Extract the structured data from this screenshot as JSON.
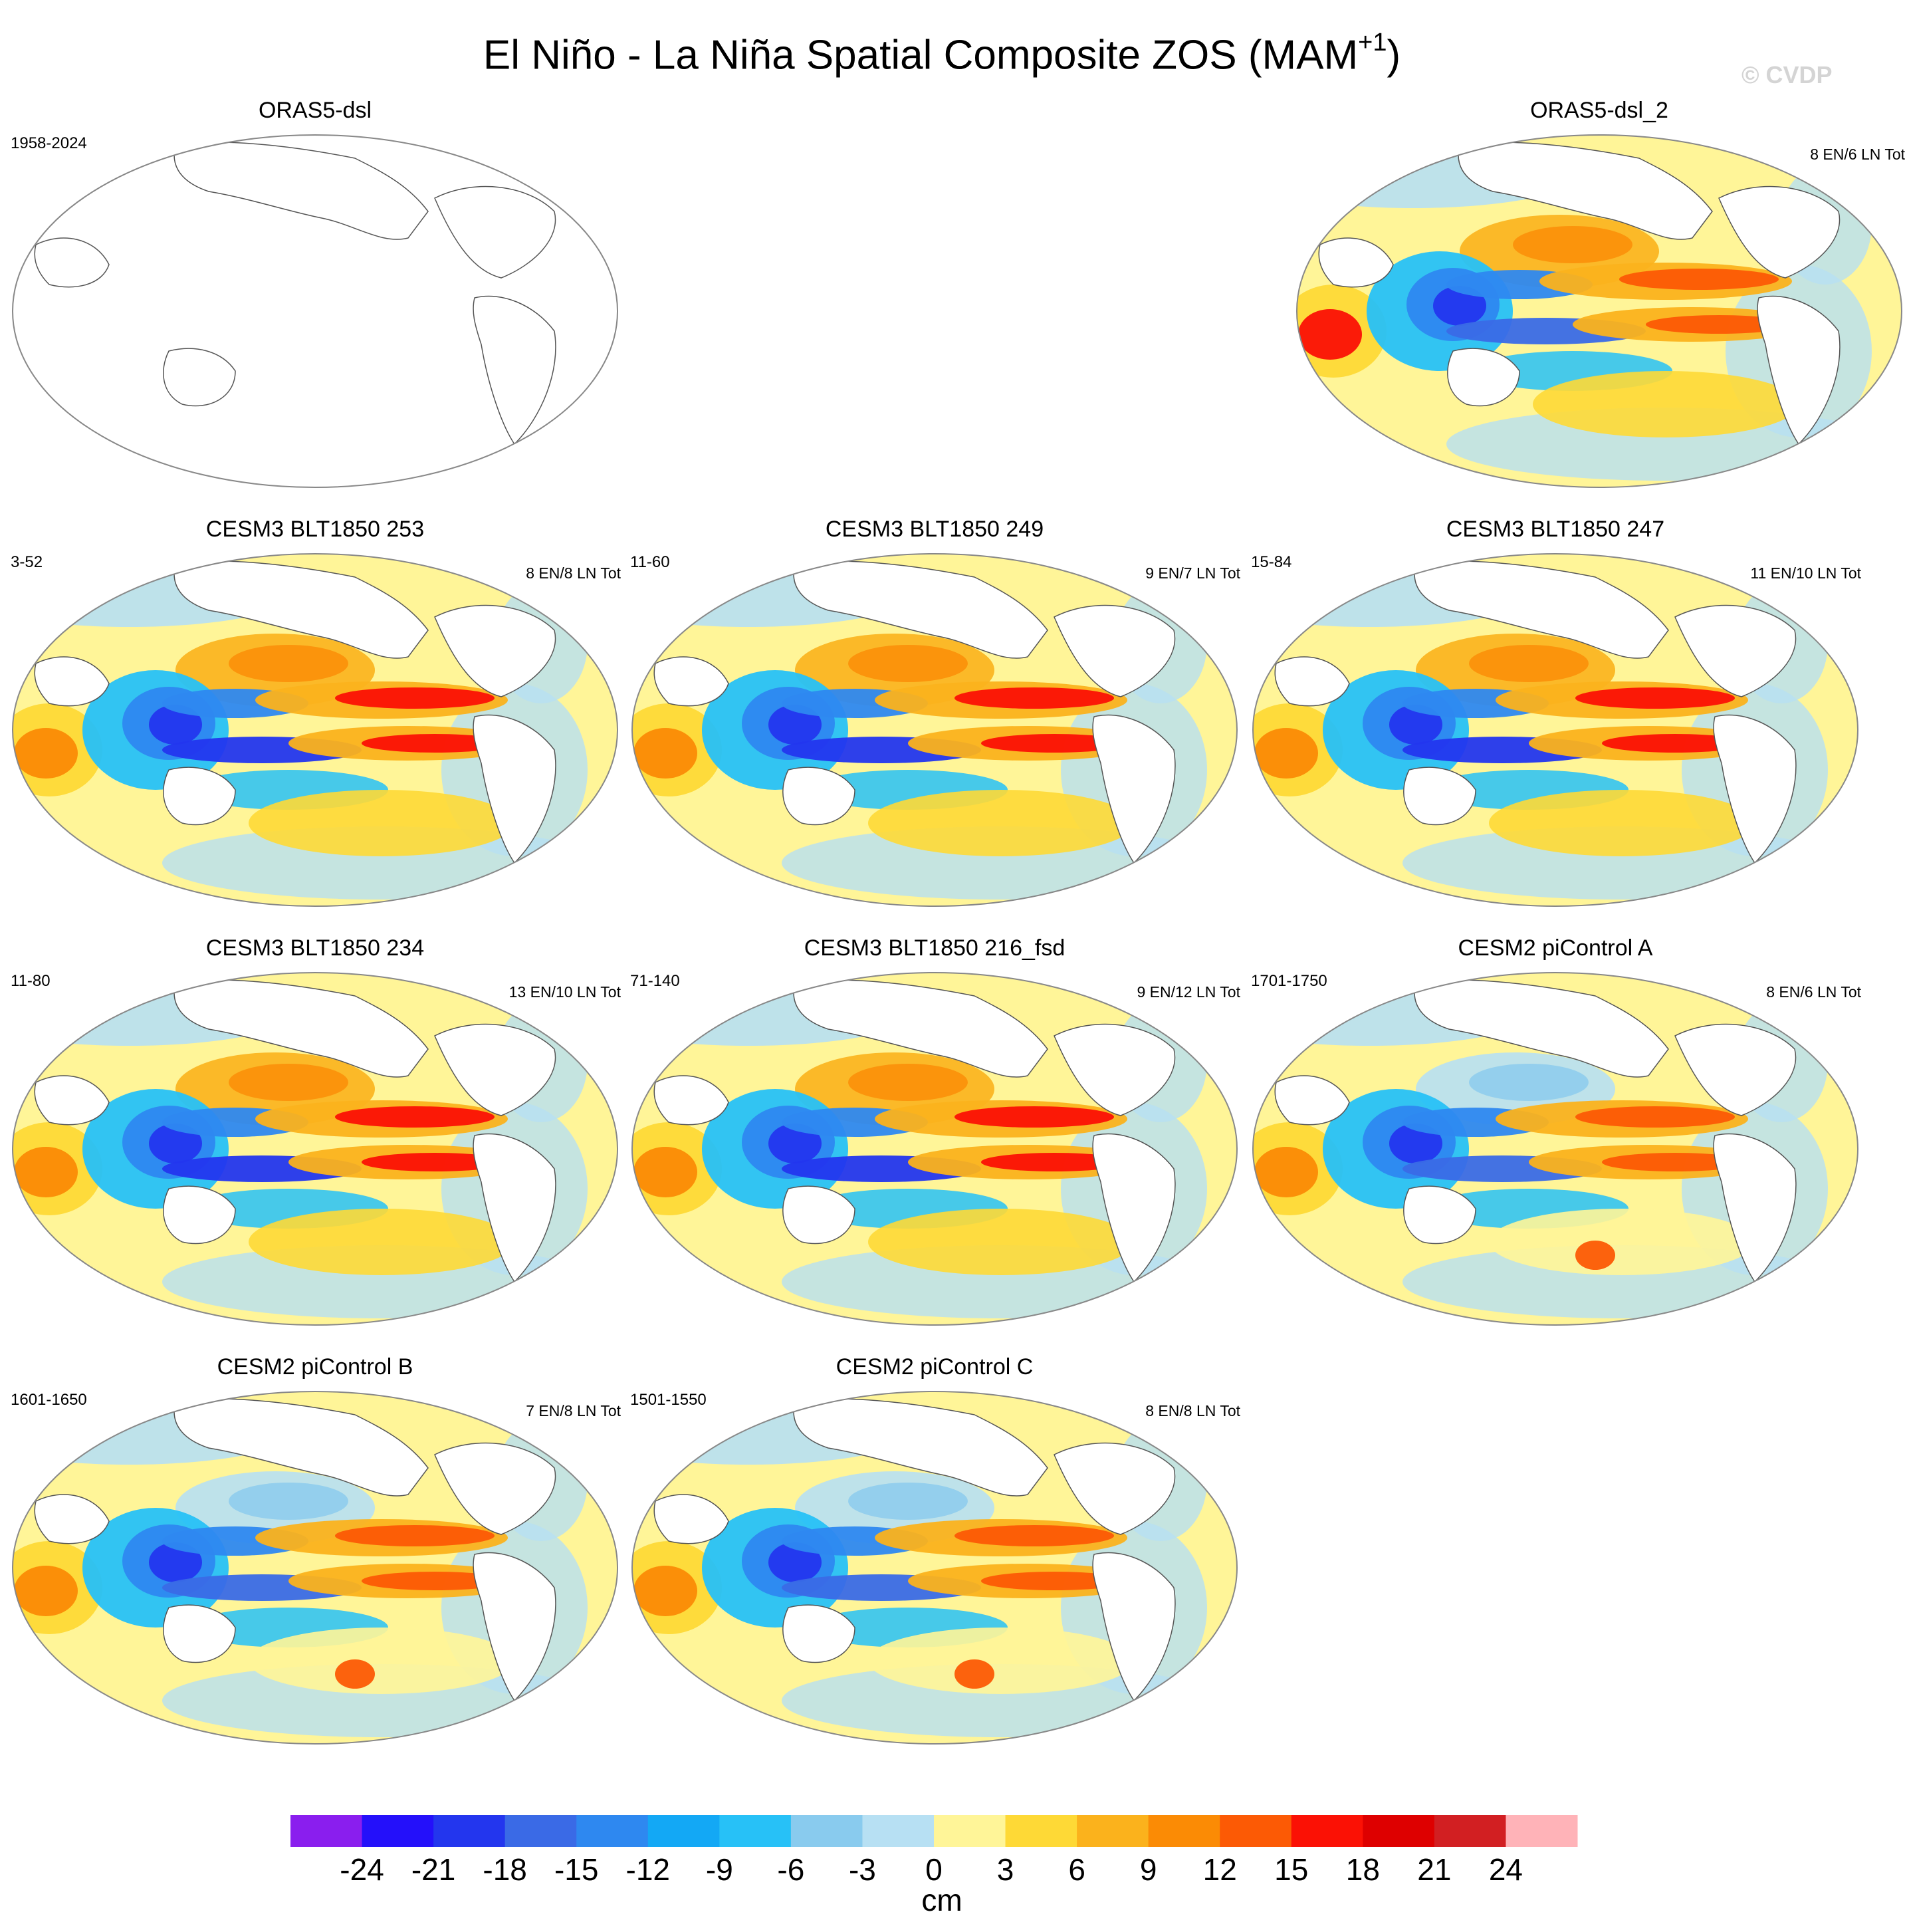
{
  "title": {
    "main": "El Niño - La Niña Spatial Composite ZOS (MAM",
    "superscript": "+1",
    "close": ")"
  },
  "watermark": "© CVDP",
  "panels": [
    {
      "title": "ORAS5-dsl",
      "left": "1958-2024",
      "right": "",
      "filled": false,
      "variant": 0
    },
    {
      "title": "ORAS5-dsl_2",
      "left": "",
      "right": "8 EN/6 LN Tot",
      "filled": true,
      "variant": 1
    },
    {
      "title": "CESM3 BLT1850 253",
      "left": "3-52",
      "right": "8 EN/8 LN Tot",
      "filled": true,
      "variant": 2
    },
    {
      "title": "CESM3 BLT1850 249",
      "left": "11-60",
      "right": "9 EN/7 LN Tot",
      "filled": true,
      "variant": 3
    },
    {
      "title": "CESM3 BLT1850 247",
      "left": "15-84",
      "right": "11 EN/10 LN Tot",
      "filled": true,
      "variant": 3
    },
    {
      "title": "CESM3 BLT1850 234",
      "left": "11-80",
      "right": "13 EN/10 LN Tot",
      "filled": true,
      "variant": 2
    },
    {
      "title": "CESM3 BLT1850 216_fsd",
      "left": "71-140",
      "right": "9 EN/12 LN Tot",
      "filled": true,
      "variant": 3
    },
    {
      "title": "CESM2 piControl A",
      "left": "1701-1750",
      "right": "8 EN/6 LN Tot",
      "filled": true,
      "variant": 4
    },
    {
      "title": "CESM2 piControl B",
      "left": "1601-1650",
      "right": "7 EN/8 LN Tot",
      "filled": true,
      "variant": 4
    },
    {
      "title": "CESM2 piControl C",
      "left": "1501-1550",
      "right": "8 EN/8 LN Tot",
      "filled": true,
      "variant": 4
    }
  ],
  "colorbar": {
    "units": "cm",
    "labels": [
      "-24",
      "-21",
      "-18",
      "-15",
      "-12",
      "-9",
      "-6",
      "-3",
      "0",
      "3",
      "6",
      "9",
      "12",
      "15",
      "18",
      "21",
      "24"
    ],
    "colors": [
      "#8a1eee",
      "#2410fa",
      "#2336ee",
      "#3a6ae6",
      "#2e88f0",
      "#13a8f5",
      "#27c1f7",
      "#89cbee",
      "#b7e0f3",
      "#fff598",
      "#fed936",
      "#fbb21c",
      "#fb8b05",
      "#fc5a05",
      "#fb1105",
      "#de0000",
      "#d21f22",
      "#ffb3b8"
    ]
  }
}
